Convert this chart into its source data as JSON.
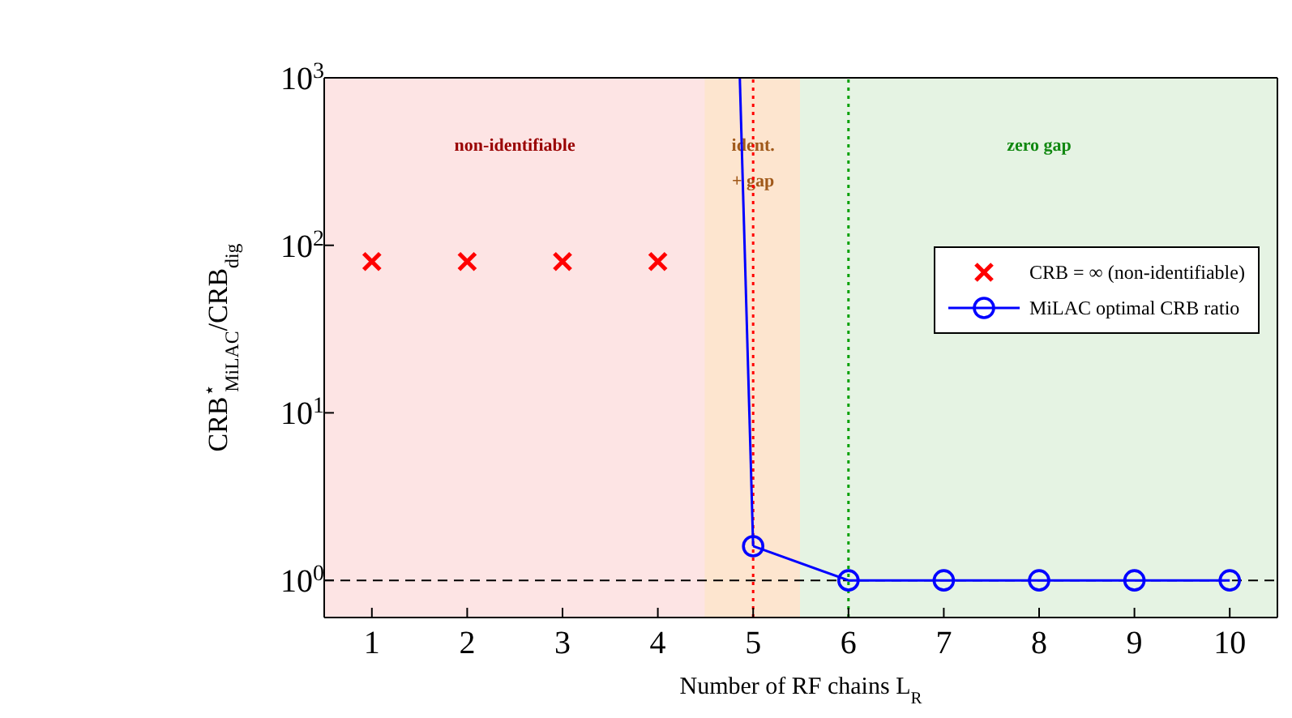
{
  "chart_data": {
    "type": "line",
    "xlabel": "Number of RF chains L$_{R}$",
    "ylabel": "CRB$^{⋆}$$_{MiLAC}$/CRB$_{dig}$",
    "log": "y",
    "legend": "right",
    "xlim": [
      0.5,
      10.5
    ],
    "xticks": [
      1,
      2,
      3,
      4,
      5,
      6,
      7,
      8,
      9,
      10
    ],
    "ylim": [
      0.6,
      1000
    ],
    "yticks": [
      {
        "value": 1,
        "label": "10$^{0}$"
      },
      {
        "value": 10,
        "label": "10$^{1}$"
      },
      {
        "value": 100,
        "label": "10$^{2}$"
      },
      {
        "value": 1000,
        "label": "10$^{3}$"
      }
    ],
    "series": [
      {
        "name": "CRB = ∞ (non-identifiable)",
        "type": "scatter",
        "color": "#ff0000",
        "marker": "cross",
        "x": [
          1,
          2,
          3,
          4
        ],
        "values": [
          80,
          80,
          80,
          80
        ]
      },
      {
        "name": "MiLAC optimal CRB ratio",
        "color": "#0000ff",
        "marker": "circle",
        "x": [
          5,
          6,
          7,
          8,
          9,
          10
        ],
        "values": [
          1.6,
          1,
          1,
          1,
          1,
          1
        ]
      },
      {
        "color": "#0000ff",
        "marker": "none",
        "x": [
          4.86,
          5
        ],
        "values": [
          1000,
          1.6
        ]
      }
    ],
    "bands": [
      {
        "axis": "x",
        "from": 0.5,
        "to": 4.5,
        "label": "non-identifiable",
        "color": "#fde4e4"
      },
      {
        "axis": "x",
        "from": 4.5,
        "to": 5.5,
        "label": "ident.\n+ gap",
        "color": "#fde5cf"
      },
      {
        "axis": "x",
        "from": 5.5,
        "to": 10.5,
        "label": "zero gap",
        "color": "#e5f3e3"
      }
    ],
    "ref_lines": [
      {
        "axis": "y",
        "value": 1,
        "color": "#000000",
        "line_style": "dashed"
      },
      {
        "axis": "x",
        "value": 5,
        "color": "#ff0000",
        "line_style": "dotted"
      },
      {
        "axis": "x",
        "value": 6,
        "color": "#00a000",
        "line_style": "dotted"
      }
    ]
  }
}
